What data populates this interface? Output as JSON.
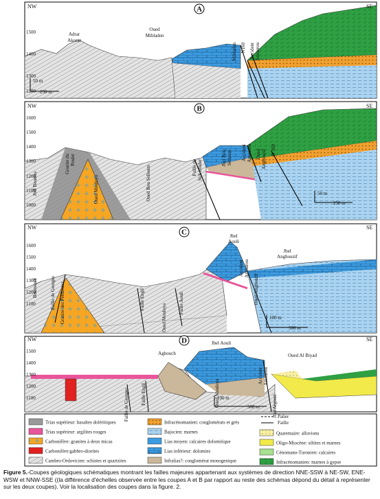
{
  "panels": [
    {
      "letter": "A",
      "nw": "NW",
      "se": "SE",
      "elevations": [
        "1500",
        "1400",
        "1300",
        "1200"
      ],
      "labels": [
        "Adrar",
        "Akorar",
        "Oued",
        "Mibladen",
        "Mibladen",
        "N160",
        "Accident",
        "Amourou"
      ],
      "scale": [
        "50 m",
        "250 m"
      ]
    },
    {
      "letter": "B",
      "nw": "NW",
      "se": "SE",
      "elevations": [
        "1600",
        "1500",
        "1400",
        "1300",
        "1200",
        "1100",
        "1000"
      ],
      "labels": [
        "Jbel Boumra",
        "Granite du",
        "Poulet",
        "Oued Mouloya",
        "Oued Bou Selloum",
        "Faille de",
        "Sidi imider",
        "Jbel Bou",
        "Selloum",
        "Accident",
        "Amourou",
        "Oued",
        "Anghouzif",
        "N 160"
      ],
      "scale": [
        "50 m",
        "250 m"
      ]
    },
    {
      "letter": "C",
      "nw": "NW",
      "se": "SE",
      "elevations": [
        "1600",
        "1500",
        "1400",
        "1300",
        "1200",
        "1100"
      ],
      "labels": [
        "Boumoual",
        "Faille de Georges",
        "Granite des Perdreaux",
        "Faille Engil",
        "Oued Mouloya",
        "Faille Aouli",
        "Jbel",
        "Aouli",
        "Accident",
        "Amourou",
        "Oued Anghouzif",
        "Jbel",
        "Anghouzif"
      ],
      "scale": [
        "100 m",
        "500 m"
      ]
    },
    {
      "letter": "D",
      "nw": "NW",
      "se": "SE",
      "elevations": [
        "1500",
        "1400",
        "1300",
        "1200",
        "1100"
      ],
      "labels": [
        "Faille de Georges",
        "Faille Engil",
        "Aghouch",
        "Oued Mouloya",
        "Jbel Aouli",
        "Accident",
        "Amourou",
        "Jbel Argoud",
        "Oued Al Biyad"
      ],
      "scale": [
        "100 m",
        "500 m"
      ]
    }
  ],
  "legend": {
    "items": [
      {
        "label": "Trias supérieur: basaltes doléritiques",
        "color": "#9a9a9a"
      },
      {
        "label": "Trias supérieur: argilites rouges",
        "color": "#e8559a"
      },
      {
        "label": "Carbonifère: granites à deux micas",
        "color": "#f6a623"
      },
      {
        "label": "Carbonifère:gabbro-diorites",
        "color": "#e0211f"
      },
      {
        "label": "Cambro-Ordovicien: schistes et quartzites",
        "color": "#e6e6e6"
      },
      {
        "label": "Infracénomanien: conglomérats et grès",
        "color": "#f0a030"
      },
      {
        "label": "Bajocien: marnes",
        "color": "#a9d3f0"
      },
      {
        "label": "Lias moyen: calcaires dolomitique",
        "color": "#3d9be0"
      },
      {
        "label": "Lias inférieur: dolomies",
        "color": "#2f86cf"
      },
      {
        "label": "Infralias?: conglomérat monogenique",
        "color": "#cbb89a"
      },
      {
        "label": "Quaternaire: alluvions",
        "color": "#f8f0a0"
      },
      {
        "label": "Oligo-Miocène: siltites et marnes",
        "color": "#f2ea4a"
      },
      {
        "label": "Cénomano-Turonien: calcaires",
        "color": "#a8df90"
      },
      {
        "label": "Infracénomanien: marnes à gypse",
        "color": "#2fa043"
      }
    ],
    "palier": "Palier",
    "faille": "Faille"
  },
  "caption": {
    "figure": "Figure 5.",
    "text": "-Coupes géologiques schématiques montrant les failles majeures appartenant aux systèmes de direction NNE-SSW à NE-SW, ENE-WSW et NNW-SSE ((la différence d'échelles observée entre les coupes A et B par rapport au reste des schémas dépond du détail à représenter sur les deux coupes). Voir la localisation des coupes dans la figure. 2."
  }
}
